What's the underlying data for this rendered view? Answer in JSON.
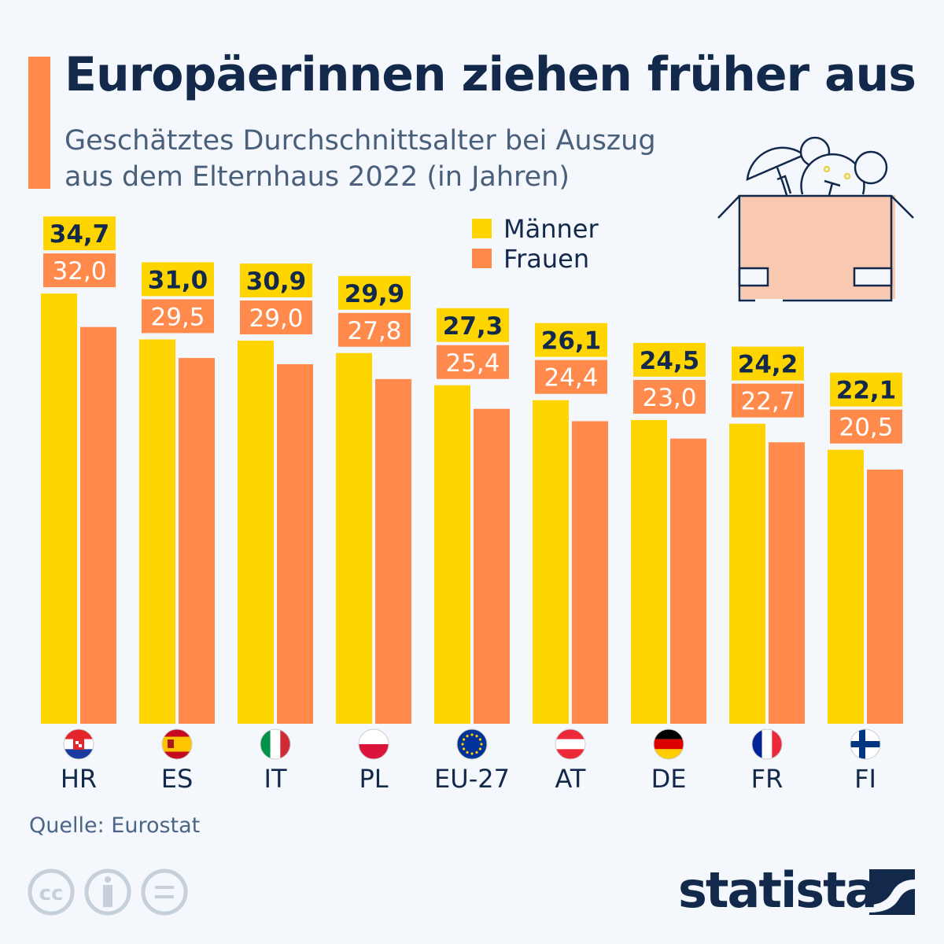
{
  "title": "Europäerinnen ziehen früher aus",
  "subtitle": "Geschätztes Durchschnittsalter bei Auszug aus dem Elternhaus 2022 (in Jahren)",
  "source": "Quelle: Eurostat",
  "brand": "statista",
  "colors": {
    "maenner": "#ffd500",
    "frauen": "#ff8a4c",
    "text": "#13294b",
    "accent": "#ff8a4c"
  },
  "chart_data": {
    "type": "bar",
    "categories": [
      "HR",
      "ES",
      "IT",
      "PL",
      "EU-27",
      "AT",
      "DE",
      "FR",
      "FI"
    ],
    "series": [
      {
        "name": "Männer",
        "values": [
          34.7,
          31.0,
          30.9,
          29.9,
          27.3,
          26.1,
          24.5,
          24.2,
          22.1
        ],
        "labels": [
          "34,7",
          "31,0",
          "30,9",
          "29,9",
          "27,3",
          "26,1",
          "24,5",
          "24,2",
          "22,1"
        ]
      },
      {
        "name": "Frauen",
        "values": [
          32.0,
          29.5,
          29.0,
          27.8,
          25.4,
          24.4,
          23.0,
          22.7,
          20.5
        ],
        "labels": [
          "32,0",
          "29,5",
          "29,0",
          "27,8",
          "25,4",
          "24,4",
          "23,0",
          "22,7",
          "20,5"
        ]
      }
    ],
    "legend_position": "top-right",
    "grid": false,
    "ylim": [
      0,
      35
    ]
  },
  "flags": [
    "croatia-flag",
    "spain-flag",
    "italy-flag",
    "poland-flag",
    "eu-flag",
    "austria-flag",
    "germany-flag",
    "france-flag",
    "finland-flag"
  ]
}
